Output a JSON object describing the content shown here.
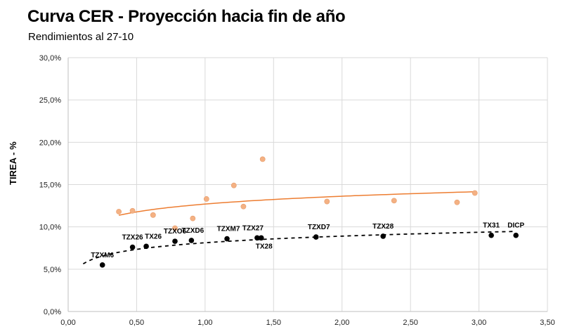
{
  "title": "Curva CER - Proyección hacia fin de año",
  "subtitle": "Rendimientos al 27-10",
  "colors": {
    "grid": "#d9d9d9",
    "axis": "#bfbfbf",
    "projection_points": "#f4b183",
    "projection_trend": "#ed7d31",
    "current_points": "#000000"
  },
  "chart_data": {
    "type": "scatter",
    "title": "Curva CER - Proyección hacia fin de año",
    "subtitle": "Rendimientos al 27-10",
    "xlabel": "",
    "ylabel": "TIREA - %",
    "xlim": [
      0,
      3.5
    ],
    "ylim": [
      0,
      30
    ],
    "x_ticks": [
      "0,00",
      "0,50",
      "1,00",
      "1,50",
      "2,00",
      "2,50",
      "3,00",
      "3,50"
    ],
    "y_ticks": [
      "0,0%",
      "5,0%",
      "10,0%",
      "15,0%",
      "20,0%",
      "25,0%",
      "30,0%"
    ],
    "grid": true,
    "legend": "none",
    "series": [
      {
        "points": [
          {
            "x": 0.37,
            "y": 11.8
          },
          {
            "x": 0.47,
            "y": 11.9
          },
          {
            "x": 0.62,
            "y": 11.4
          },
          {
            "x": 0.78,
            "y": 9.85
          },
          {
            "x": 0.91,
            "y": 11.0
          },
          {
            "x": 1.01,
            "y": 13.3
          },
          {
            "x": 1.21,
            "y": 14.9
          },
          {
            "x": 1.28,
            "y": 12.4
          },
          {
            "x": 1.42,
            "y": 18.0
          },
          {
            "x": 1.89,
            "y": 13.0
          },
          {
            "x": 2.38,
            "y": 13.1
          },
          {
            "x": 2.84,
            "y": 12.9
          },
          {
            "x": 2.97,
            "y": 14.0
          }
        ],
        "trendline": "logarithmic"
      },
      {
        "points": [
          {
            "x": 0.25,
            "y": 5.5,
            "label": "TZXM6"
          },
          {
            "x": 0.47,
            "y": 7.6,
            "label": "TZX26"
          },
          {
            "x": 0.57,
            "y": 7.7,
            "label": "TX26"
          },
          {
            "x": 0.78,
            "y": 8.3,
            "label": "TZXO6"
          },
          {
            "x": 0.9,
            "y": 8.4,
            "label": "TZXD6"
          },
          {
            "x": 1.16,
            "y": 8.6,
            "label": "TZXM7"
          },
          {
            "x": 1.38,
            "y": 8.7,
            "label": "TZX27"
          },
          {
            "x": 1.41,
            "y": 8.7,
            "label": "TX28"
          },
          {
            "x": 1.81,
            "y": 8.8,
            "label": "TZXD7"
          },
          {
            "x": 2.3,
            "y": 8.9,
            "label": "TZX28"
          },
          {
            "x": 3.09,
            "y": 9.0,
            "label": "TX31"
          },
          {
            "x": 3.27,
            "y": 9.0,
            "label": "DICP"
          }
        ],
        "trendline": "logarithmic"
      }
    ]
  }
}
